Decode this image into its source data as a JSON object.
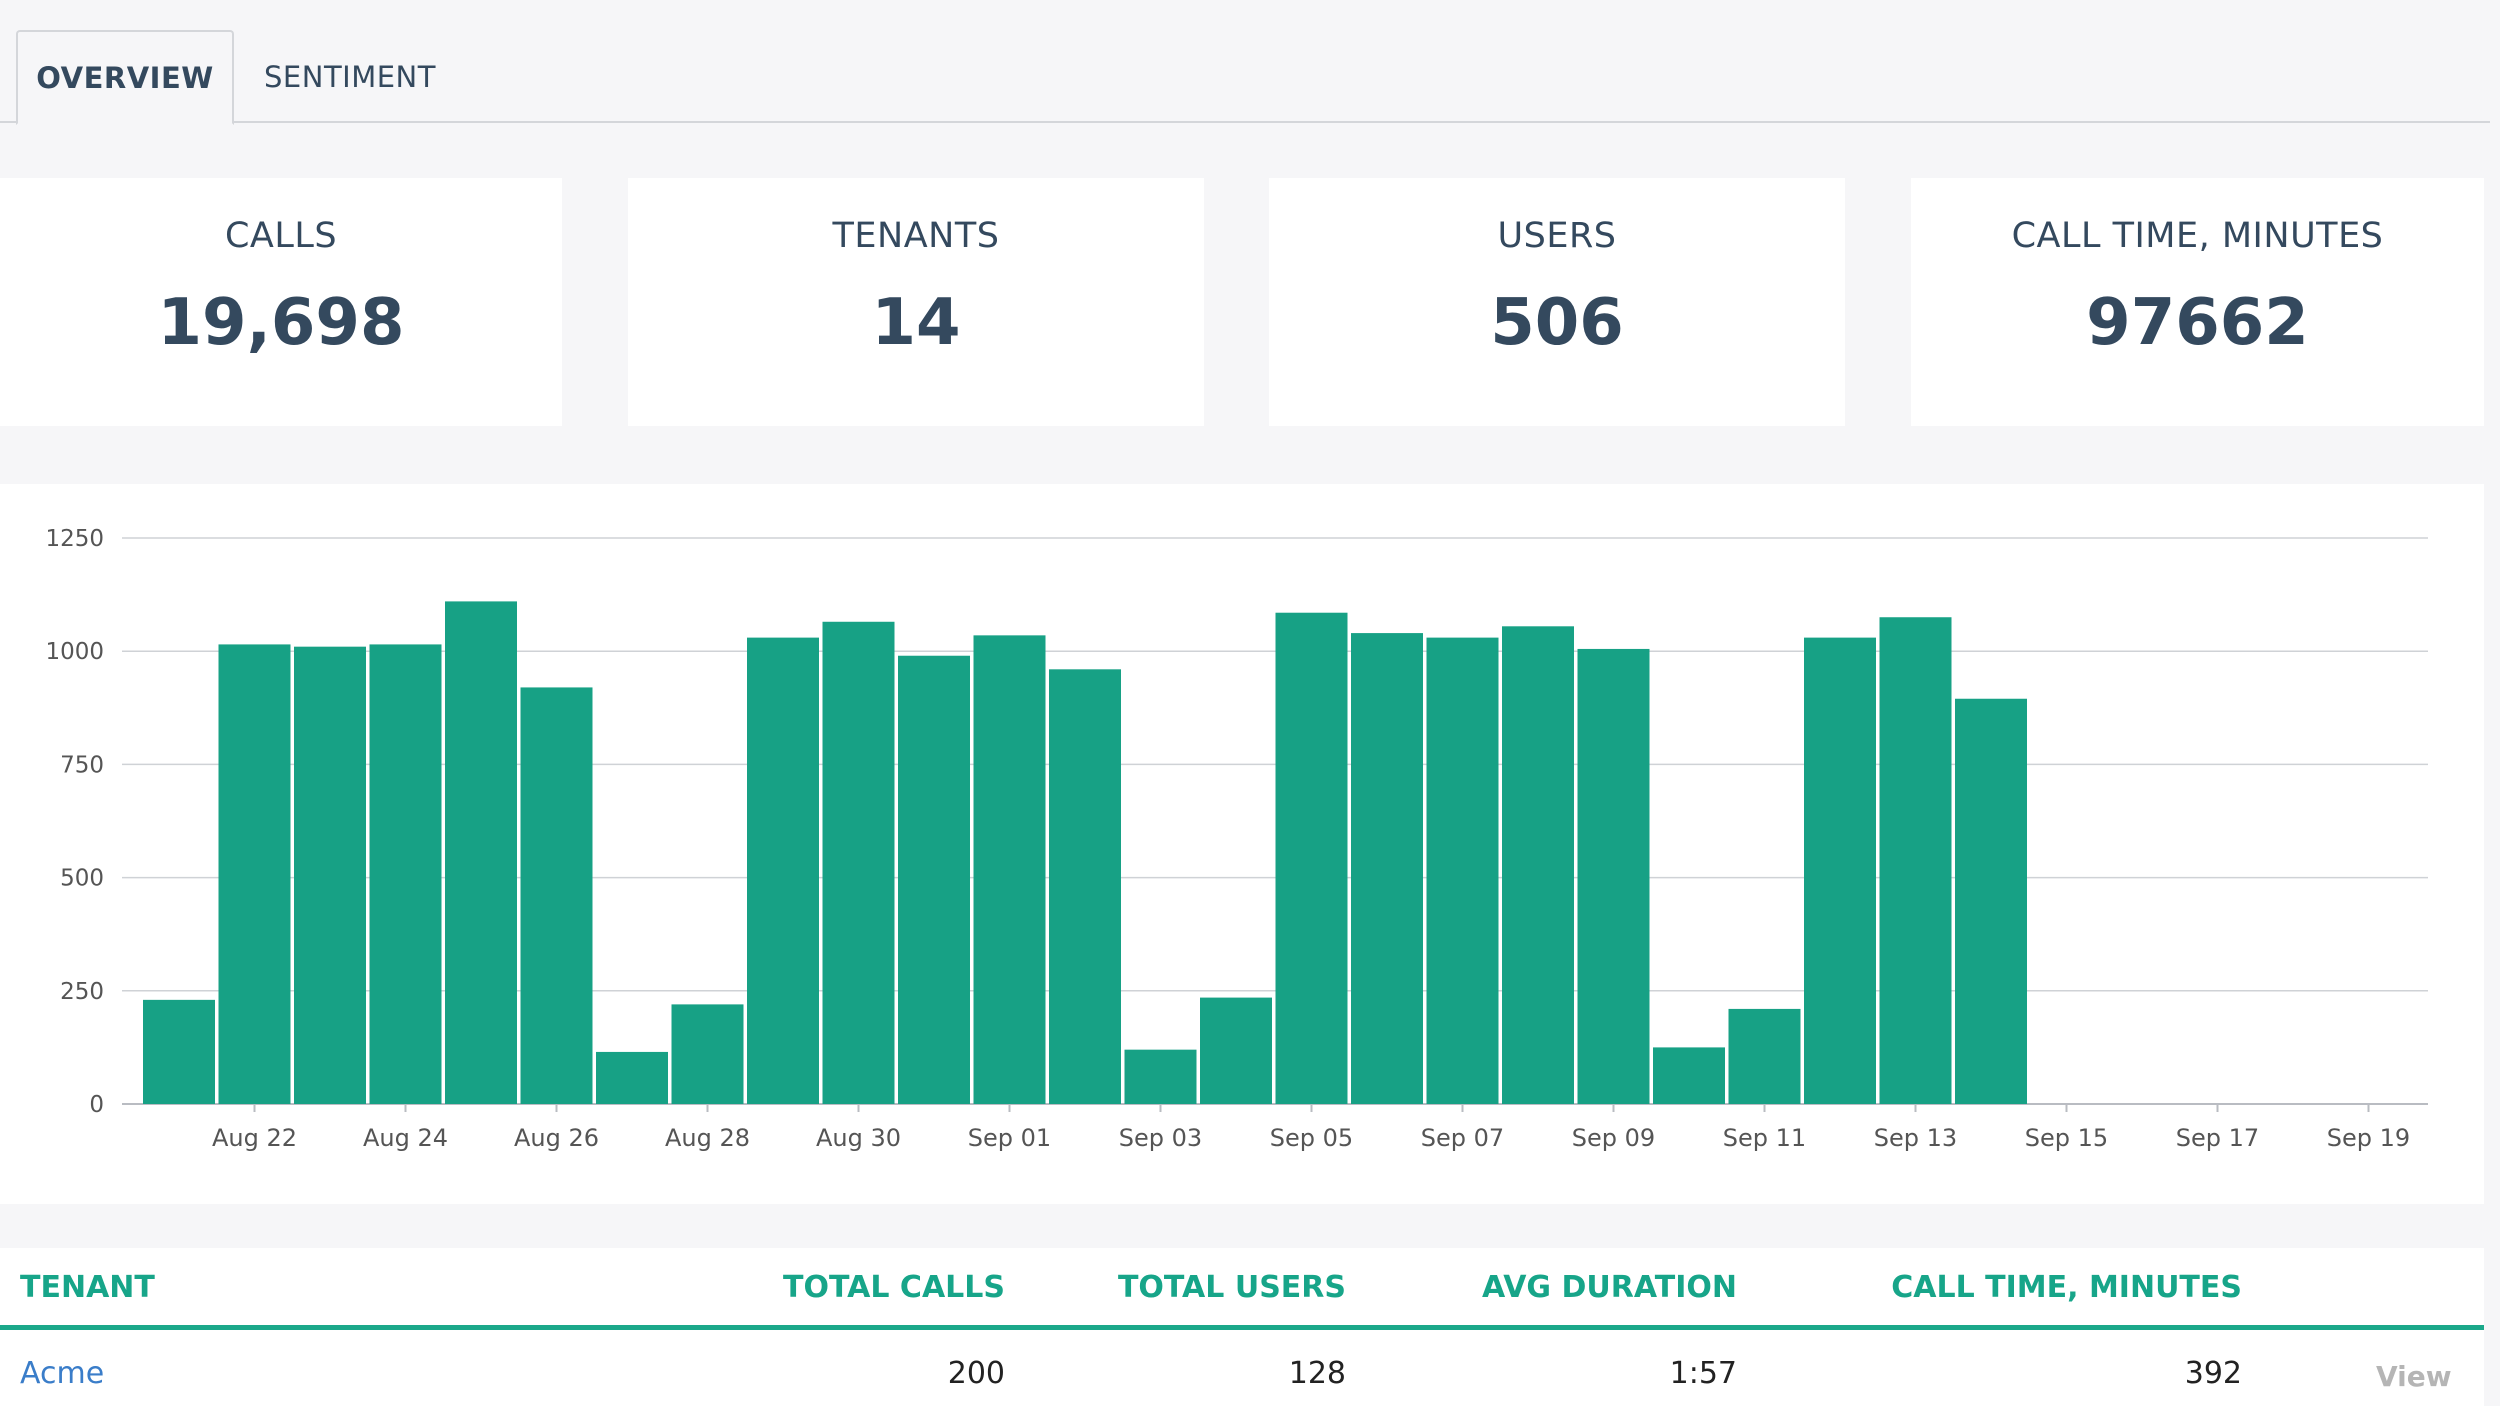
{
  "tabs": [
    {
      "label": "OVERVIEW",
      "active": true
    },
    {
      "label": "SENTIMENT",
      "active": false
    }
  ],
  "stats": [
    {
      "label": "CALLS",
      "value": "19,698"
    },
    {
      "label": "TENANTS",
      "value": "14"
    },
    {
      "label": "USERS",
      "value": "506"
    },
    {
      "label": "CALL TIME, MINUTES",
      "value": "97662"
    }
  ],
  "chart_data": {
    "type": "bar",
    "bar_color": "#17a185",
    "ylim": [
      0,
      1250
    ],
    "yticks": [
      0,
      250,
      500,
      750,
      1000,
      1250
    ],
    "grid": true,
    "x_tick_labels": [
      "Aug 22",
      "Aug 24",
      "Aug 26",
      "Aug 28",
      "Aug 30",
      "Sep 01",
      "Sep 03",
      "Sep 05",
      "Sep 07",
      "Sep 09",
      "Sep 11",
      "Sep 13",
      "Sep 15",
      "Sep 17",
      "Sep 19"
    ],
    "categories": [
      "Aug 21",
      "Aug 22",
      "Aug 23",
      "Aug 24",
      "Aug 25",
      "Aug 26",
      "Aug 27",
      "Aug 28",
      "Aug 29",
      "Aug 30",
      "Aug 31",
      "Sep 01",
      "Sep 02",
      "Sep 03",
      "Sep 04",
      "Sep 05",
      "Sep 06",
      "Sep 07",
      "Sep 08",
      "Sep 09",
      "Sep 10",
      "Sep 11",
      "Sep 12",
      "Sep 13",
      "Sep 14",
      "Sep 15",
      "Sep 16",
      "Sep 17",
      "Sep 18",
      "Sep 19"
    ],
    "values": [
      230,
      1015,
      1010,
      1015,
      1110,
      920,
      115,
      220,
      1030,
      1065,
      990,
      1035,
      960,
      120,
      235,
      1085,
      1040,
      1030,
      1055,
      1005,
      125,
      210,
      1030,
      1075,
      895,
      0,
      0,
      0,
      0,
      0
    ]
  },
  "table": {
    "headers": {
      "tenant": "TENANT",
      "total_calls": "TOTAL CALLS",
      "total_users": "TOTAL USERS",
      "avg_duration": "AVG DURATION",
      "call_time": "CALL TIME, MINUTES"
    },
    "rows": [
      {
        "tenant": "Acme",
        "total_calls": "200",
        "total_users": "128",
        "avg_duration": "1:57",
        "call_time": "392",
        "action": "View"
      }
    ]
  },
  "colors": {
    "accent": "#17a589",
    "link": "#3a7dc9",
    "text": "#34495e"
  }
}
